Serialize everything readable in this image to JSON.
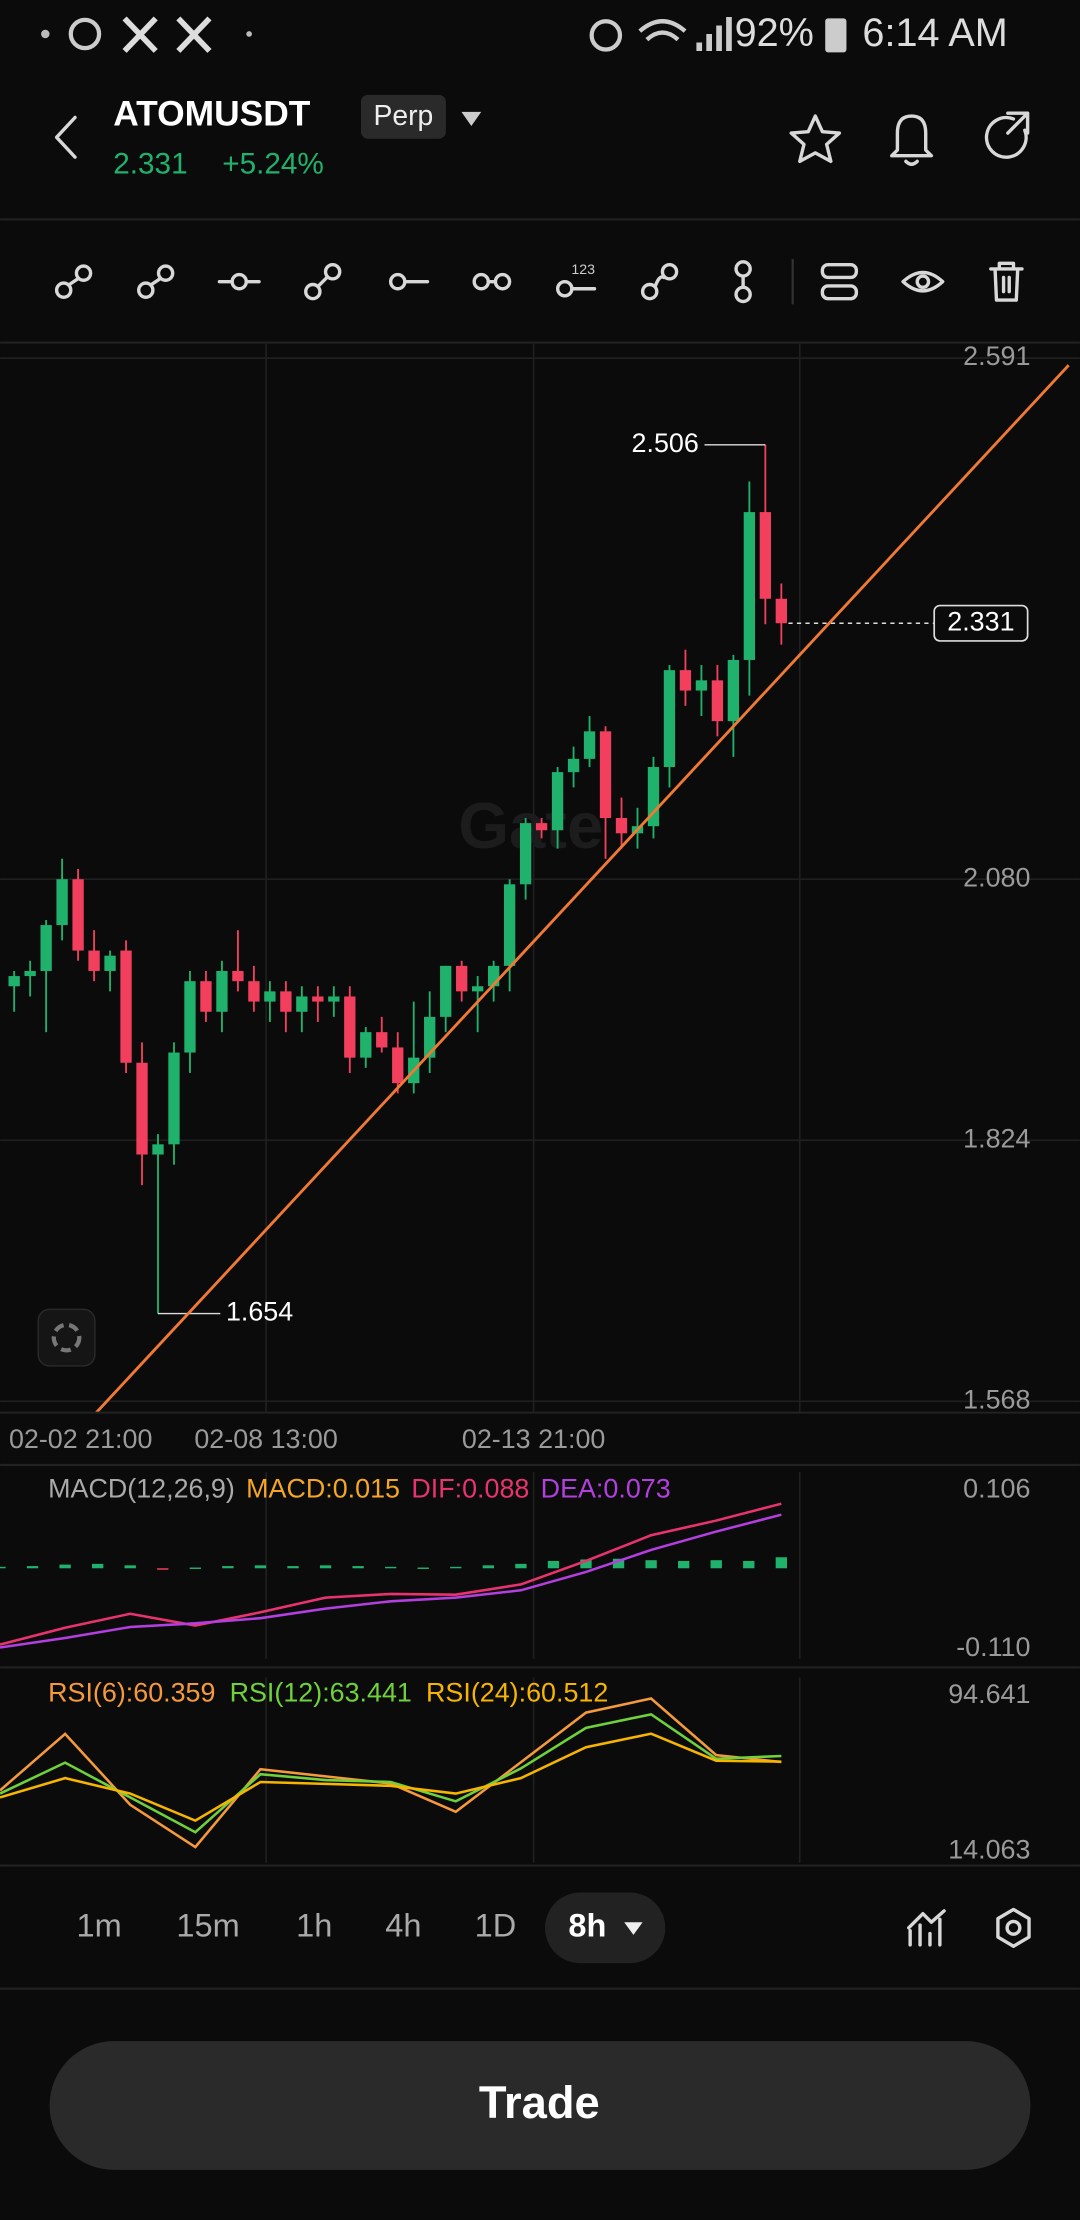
{
  "status_bar": {
    "battery": "92%",
    "time": "6:14 AM"
  },
  "header": {
    "symbol": "ATOMUSDT",
    "badge": "Perp",
    "price": "2.331",
    "change": "+5.24%"
  },
  "watermark": "Gate",
  "chart_data": [
    {
      "type": "candlestick",
      "x_labels": [
        "02-02 21:00",
        "02-08 13:00",
        "02-13 21:00"
      ],
      "open": [
        1.975,
        1.985,
        1.99,
        2.035,
        2.08,
        2.01,
        1.99,
        2.01,
        1.9,
        1.81,
        1.82,
        1.91,
        1.98,
        1.95,
        1.99,
        1.98,
        1.96,
        1.97,
        1.95,
        1.965,
        1.96,
        1.965,
        1.905,
        1.93,
        1.915,
        1.88,
        1.905,
        1.945,
        1.995,
        1.97,
        1.975,
        1.995,
        2.075,
        2.135,
        2.128,
        2.185,
        2.198,
        2.225,
        2.14,
        2.125,
        2.132,
        2.19,
        2.285,
        2.265,
        2.275,
        2.235,
        2.295,
        2.44,
        2.355
      ],
      "high": [
        1.99,
        2.0,
        2.04,
        2.1,
        2.09,
        2.03,
        2.01,
        2.02,
        1.92,
        1.83,
        1.92,
        1.99,
        1.99,
        2.0,
        2.03,
        1.995,
        1.98,
        1.98,
        1.975,
        1.975,
        1.975,
        1.975,
        1.935,
        1.945,
        1.93,
        1.96,
        1.97,
        1.995,
        2.0,
        1.985,
        2.0,
        2.08,
        2.14,
        2.14,
        2.19,
        2.21,
        2.24,
        2.23,
        2.16,
        2.15,
        2.2,
        2.29,
        2.305,
        2.29,
        2.29,
        2.3,
        2.47,
        2.506,
        2.37
      ],
      "low": [
        1.95,
        1.965,
        1.93,
        2.02,
        2.0,
        1.98,
        1.97,
        1.89,
        1.78,
        1.654,
        1.8,
        1.89,
        1.94,
        1.93,
        1.97,
        1.95,
        1.94,
        1.93,
        1.93,
        1.94,
        1.945,
        1.89,
        1.895,
        1.91,
        1.87,
        1.87,
        1.89,
        1.93,
        1.96,
        1.93,
        1.96,
        1.97,
        2.06,
        2.12,
        2.11,
        2.17,
        2.19,
        2.1,
        2.11,
        2.11,
        2.12,
        2.17,
        2.25,
        2.24,
        2.22,
        2.2,
        2.26,
        2.33,
        2.31
      ],
      "close": [
        1.985,
        1.99,
        2.035,
        2.08,
        2.01,
        1.99,
        2.005,
        1.9,
        1.81,
        1.82,
        1.91,
        1.98,
        1.95,
        1.99,
        1.98,
        1.96,
        1.97,
        1.95,
        1.965,
        1.96,
        1.965,
        1.905,
        1.93,
        1.915,
        1.88,
        1.905,
        1.945,
        1.995,
        1.97,
        1.975,
        1.995,
        2.075,
        2.135,
        2.128,
        2.185,
        2.198,
        2.225,
        2.14,
        2.125,
        2.132,
        2.19,
        2.285,
        2.265,
        2.275,
        2.235,
        2.295,
        2.44,
        2.355,
        2.331
      ],
      "ylim": [
        1.568,
        2.591
      ],
      "yticks": [
        2.591,
        {
          "value": 2.08,
          "label": "2.080"
        },
        1.824,
        1.568
      ],
      "up_color": "#20b26c",
      "down_color": "#f23f5d",
      "grid": true
    },
    {
      "type": "macd",
      "title": "MACD(12,26,9)",
      "series": [
        {
          "name": "MACD:0.015",
          "color": "#f5a623",
          "bar_color": "#20b26c",
          "negative_color": "#f23f5d",
          "values": [
            0.002,
            0.003,
            0.005,
            0.006,
            0.004,
            -0.002,
            0.001,
            0.003,
            0.004,
            0.003,
            0.004,
            0.003,
            0.002,
            0.001,
            0.002,
            0.004,
            0.006,
            0.01,
            0.012,
            0.013,
            0.011,
            0.01,
            0.011,
            0.01,
            0.015
          ]
        },
        {
          "name": "DIF:0.088",
          "color": "#e8336f",
          "values": [
            -0.104,
            -0.081,
            -0.062,
            -0.078,
            -0.06,
            -0.04,
            -0.035,
            -0.036,
            -0.022,
            0.01,
            0.045,
            0.065,
            0.088
          ]
        },
        {
          "name": "DEA:0.073",
          "color": "#b33fe0",
          "values": [
            -0.108,
            -0.095,
            -0.08,
            -0.075,
            -0.068,
            -0.055,
            -0.045,
            -0.04,
            -0.03,
            -0.005,
            0.025,
            0.05,
            0.073
          ]
        }
      ],
      "ylim": [
        -0.11,
        0.106
      ],
      "yticks": [
        0.106,
        {
          "value": -0.11,
          "label": "-0.110"
        }
      ]
    },
    {
      "type": "line",
      "series": [
        {
          "name": "RSI(6):60.359",
          "color": "#f59a3c",
          "values": [
            45.6,
            74.9,
            38.2,
            16.3,
            56.6,
            52.9,
            49.2,
            34.6,
            60.2,
            85.9,
            93.2,
            63.9,
            60.359
          ]
        },
        {
          "name": "RSI(12):63.441",
          "color": "#6fd13c",
          "values": [
            44,
            60,
            42,
            24,
            54,
            51,
            50,
            40,
            57,
            78,
            85,
            62,
            63.441
          ]
        },
        {
          "name": "RSI(24):60.512",
          "color": "#f7b500",
          "values": [
            42,
            52,
            44,
            30,
            50,
            49,
            48,
            44,
            52,
            68,
            75,
            61,
            60.512
          ]
        }
      ],
      "ylim": [
        14.063,
        94.641
      ],
      "yticks": [
        94.641,
        14.063
      ]
    }
  ],
  "timeframes": [
    "1m",
    "15m",
    "1h",
    "4h",
    "1D",
    "8h"
  ],
  "selected_timeframe": 5,
  "trade_button": "Trade"
}
